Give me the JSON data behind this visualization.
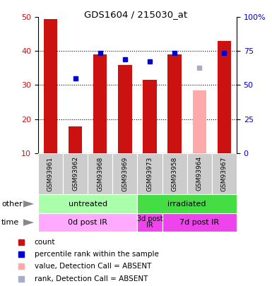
{
  "title": "GDS1604 / 215030_at",
  "samples": [
    "GSM93961",
    "GSM93962",
    "GSM93968",
    "GSM93969",
    "GSM93973",
    "GSM93958",
    "GSM93964",
    "GSM93967"
  ],
  "bar_values": [
    49.5,
    17.8,
    39.0,
    36.0,
    31.5,
    39.0,
    null,
    43.0
  ],
  "bar_absent_values": [
    null,
    null,
    null,
    null,
    null,
    null,
    28.5,
    null
  ],
  "rank_values": [
    null,
    32.0,
    39.5,
    37.5,
    37.0,
    39.5,
    null,
    39.5
  ],
  "rank_absent_values": [
    null,
    null,
    null,
    null,
    null,
    null,
    35.0,
    null
  ],
  "bar_color": "#cc1111",
  "bar_absent_color": "#ffaaaa",
  "rank_color": "#0000cc",
  "rank_absent_color": "#aaaacc",
  "ylim_left": [
    10,
    50
  ],
  "ylim_right": [
    0,
    100
  ],
  "left_ticks": [
    10,
    20,
    30,
    40,
    50
  ],
  "right_ticks": [
    0,
    25,
    50,
    75,
    100
  ],
  "right_tick_labels": [
    "0",
    "25",
    "50",
    "75",
    "100%"
  ],
  "group_other": [
    {
      "label": "untreated",
      "span": [
        0,
        4
      ],
      "color": "#aaffaa"
    },
    {
      "label": "irradiated",
      "span": [
        4,
        8
      ],
      "color": "#44dd44"
    }
  ],
  "group_time": [
    {
      "label": "0d post IR",
      "span": [
        0,
        4
      ],
      "color": "#ffaaff"
    },
    {
      "label": "3d post\nIR",
      "span": [
        4,
        5
      ],
      "color": "#ee44ee"
    },
    {
      "label": "7d post IR",
      "span": [
        5,
        8
      ],
      "color": "#ee44ee"
    }
  ],
  "legend_items": [
    {
      "label": "count",
      "color": "#cc1111"
    },
    {
      "label": "percentile rank within the sample",
      "color": "#0000cc"
    },
    {
      "label": "value, Detection Call = ABSENT",
      "color": "#ffaaaa"
    },
    {
      "label": "rank, Detection Call = ABSENT",
      "color": "#aaaacc"
    }
  ],
  "bar_width": 0.55,
  "fig_width": 3.85,
  "fig_height": 4.05,
  "dpi": 100
}
